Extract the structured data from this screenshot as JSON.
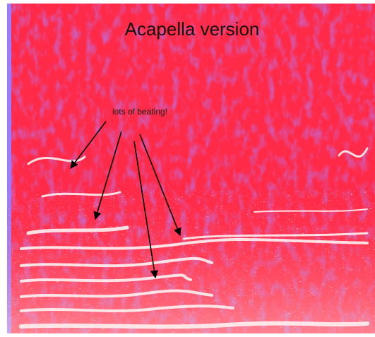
{
  "header": {
    "title": "Acapella version"
  },
  "annotation": {
    "text": "lots of beating!"
  }
}
